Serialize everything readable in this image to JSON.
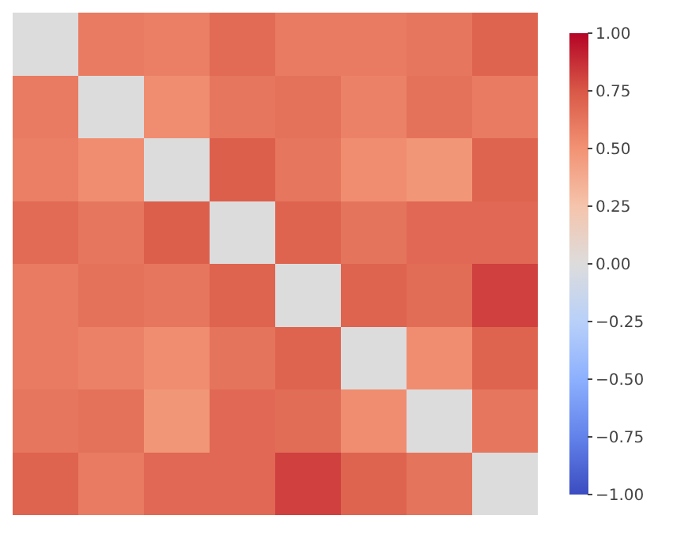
{
  "chart_data": {
    "type": "heatmap",
    "categories": [
      null,
      null,
      null,
      null,
      null,
      null,
      null,
      null
    ],
    "y_categories": [
      null,
      null,
      null,
      null,
      null,
      null,
      null,
      null
    ],
    "cells": [
      [
        0,
        0.6,
        0.58,
        0.67,
        0.6,
        0.6,
        0.62,
        0.7
      ],
      [
        0.6,
        0,
        0.52,
        0.62,
        0.64,
        0.57,
        0.64,
        0.6
      ],
      [
        0.58,
        0.52,
        0,
        0.72,
        0.62,
        0.52,
        0.48,
        0.7
      ],
      [
        0.67,
        0.62,
        0.72,
        0,
        0.7,
        0.63,
        0.68,
        0.68
      ],
      [
        0.6,
        0.64,
        0.62,
        0.7,
        0,
        0.7,
        0.66,
        0.82
      ],
      [
        0.6,
        0.57,
        0.52,
        0.63,
        0.7,
        0,
        0.52,
        0.7
      ],
      [
        0.62,
        0.64,
        0.48,
        0.68,
        0.66,
        0.52,
        0,
        0.62
      ],
      [
        0.7,
        0.6,
        0.68,
        0.68,
        0.82,
        0.7,
        0.63,
        0
      ]
    ],
    "clim": [
      -1,
      1
    ],
    "cticks": [
      {
        "value": 1,
        "label": "1.00"
      },
      {
        "value": 0.75,
        "label": "0.75"
      },
      {
        "value": 0.5,
        "label": "0.50"
      },
      {
        "value": 0.25,
        "label": "0.25"
      },
      {
        "value": 0,
        "label": "0.00"
      },
      {
        "value": -0.25,
        "label": "−0.25"
      },
      {
        "value": -0.5,
        "label": "−0.50"
      },
      {
        "value": -0.75,
        "label": "−0.75"
      },
      {
        "value": -1,
        "label": "−1.00"
      }
    ]
  }
}
